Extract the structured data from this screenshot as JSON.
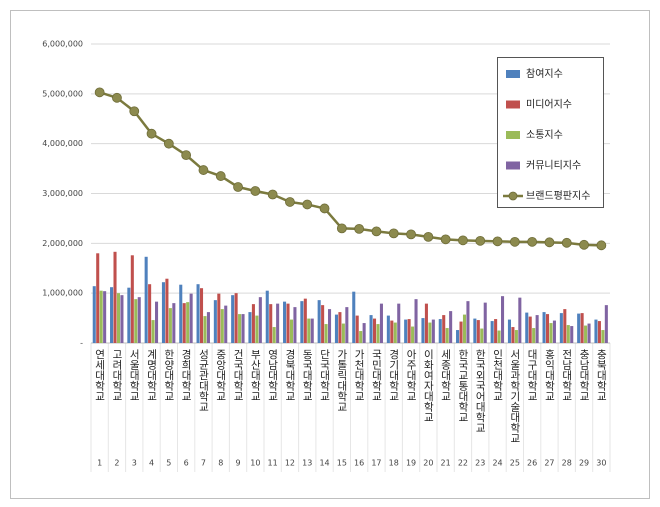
{
  "chart_data": {
    "type": "bar",
    "categories": [
      "연세대학교",
      "고려대학교",
      "서울대학교",
      "계명대학교",
      "한양대학교",
      "경희대학교",
      "성균관대학교",
      "중앙대학교",
      "건국대학교",
      "부산대학교",
      "영남대학교",
      "경북대학교",
      "동국대학교",
      "단국대학교",
      "가톨릭대학교",
      "가천대학교",
      "국민대학교",
      "경기대학교",
      "아주대학교",
      "이화여자대학교",
      "세종대학교",
      "한국교통대학교",
      "한국외국어대학교",
      "인천대학교",
      "서울과학기술대학교",
      "대구대학교",
      "홍익대학교",
      "전남대학교",
      "충남대학교",
      "충북대학교"
    ],
    "category_numbers": [
      1,
      2,
      3,
      4,
      5,
      6,
      7,
      8,
      9,
      10,
      11,
      12,
      13,
      14,
      15,
      16,
      17,
      18,
      19,
      20,
      21,
      22,
      23,
      24,
      25,
      26,
      27,
      28,
      29,
      30
    ],
    "series": [
      {
        "name": "참여지수",
        "type": "bar",
        "color": "#4f81bd",
        "values": [
          1140000,
          1120000,
          1110000,
          1730000,
          1220000,
          1170000,
          1180000,
          860000,
          960000,
          620000,
          1050000,
          830000,
          840000,
          860000,
          570000,
          1030000,
          560000,
          550000,
          470000,
          500000,
          480000,
          260000,
          490000,
          440000,
          470000,
          610000,
          620000,
          600000,
          590000,
          470000
        ]
      },
      {
        "name": "미디어지수",
        "type": "bar",
        "color": "#c0504d",
        "values": [
          1800000,
          1830000,
          1760000,
          1180000,
          1290000,
          800000,
          1100000,
          990000,
          1000000,
          780000,
          780000,
          790000,
          890000,
          760000,
          620000,
          550000,
          490000,
          450000,
          480000,
          790000,
          560000,
          430000,
          460000,
          480000,
          320000,
          530000,
          580000,
          680000,
          600000,
          440000
        ]
      },
      {
        "name": "소통지수",
        "type": "bar",
        "color": "#9bbb59",
        "values": [
          1050000,
          1000000,
          880000,
          460000,
          700000,
          820000,
          540000,
          680000,
          580000,
          550000,
          320000,
          470000,
          490000,
          380000,
          390000,
          240000,
          380000,
          410000,
          330000,
          410000,
          300000,
          570000,
          290000,
          250000,
          260000,
          300000,
          400000,
          360000,
          350000,
          260000
        ]
      },
      {
        "name": "커뮤니티지수",
        "type": "bar",
        "color": "#8064a2",
        "values": [
          1040000,
          960000,
          920000,
          830000,
          800000,
          990000,
          620000,
          750000,
          580000,
          920000,
          790000,
          720000,
          490000,
          680000,
          720000,
          400000,
          790000,
          790000,
          880000,
          470000,
          640000,
          840000,
          810000,
          940000,
          910000,
          560000,
          450000,
          340000,
          390000,
          760000
        ]
      },
      {
        "name": "브랜드평판지수",
        "type": "line",
        "color": "#8c8a4e",
        "values": [
          5030000,
          4920000,
          4650000,
          4200000,
          4000000,
          3770000,
          3470000,
          3350000,
          3130000,
          3050000,
          2980000,
          2830000,
          2780000,
          2700000,
          2300000,
          2290000,
          2240000,
          2200000,
          2180000,
          2130000,
          2080000,
          2060000,
          2050000,
          2040000,
          2030000,
          2030000,
          2020000,
          2010000,
          1970000,
          1960000
        ]
      }
    ],
    "ylim": [
      0,
      6000000
    ],
    "yticks": [
      {
        "value": 0,
        "label": "-"
      },
      {
        "value": 1000000,
        "label": "1,000,000"
      },
      {
        "value": 2000000,
        "label": "2,000,000"
      },
      {
        "value": 3000000,
        "label": "3,000,000"
      },
      {
        "value": 4000000,
        "label": "4,000,000"
      },
      {
        "value": 5000000,
        "label": "5,000,000"
      },
      {
        "value": 6000000,
        "label": "6,000,000"
      }
    ],
    "grid": true,
    "legend": "top-right"
  }
}
